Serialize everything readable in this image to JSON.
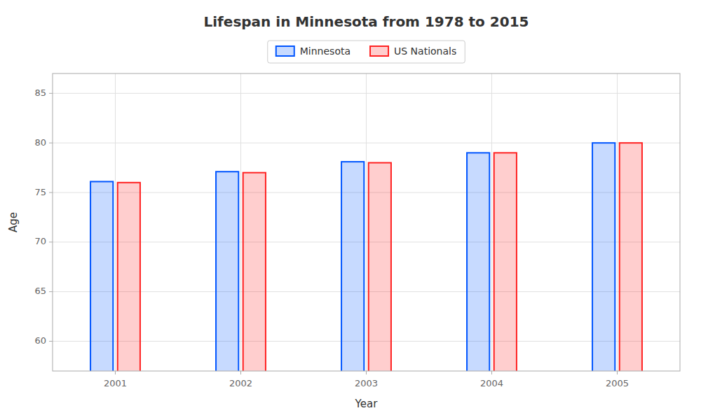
{
  "chart_data": {
    "type": "bar",
    "title": "Lifespan in Minnesota from 1978 to 2015",
    "xlabel": "Year",
    "ylabel": "Age",
    "categories": [
      "2001",
      "2002",
      "2003",
      "2004",
      "2005"
    ],
    "series": [
      {
        "name": "Minnesota",
        "color": "#0055ff",
        "values": [
          76.1,
          77.1,
          78.1,
          79.0,
          80.0
        ]
      },
      {
        "name": "US Nationals",
        "color": "#ff2222",
        "values": [
          76.0,
          77.0,
          78.0,
          79.0,
          80.0
        ]
      }
    ],
    "ylim": [
      57,
      87
    ],
    "yticks": [
      60,
      65,
      70,
      75,
      80,
      85
    ],
    "grid": true,
    "legend": "top"
  }
}
